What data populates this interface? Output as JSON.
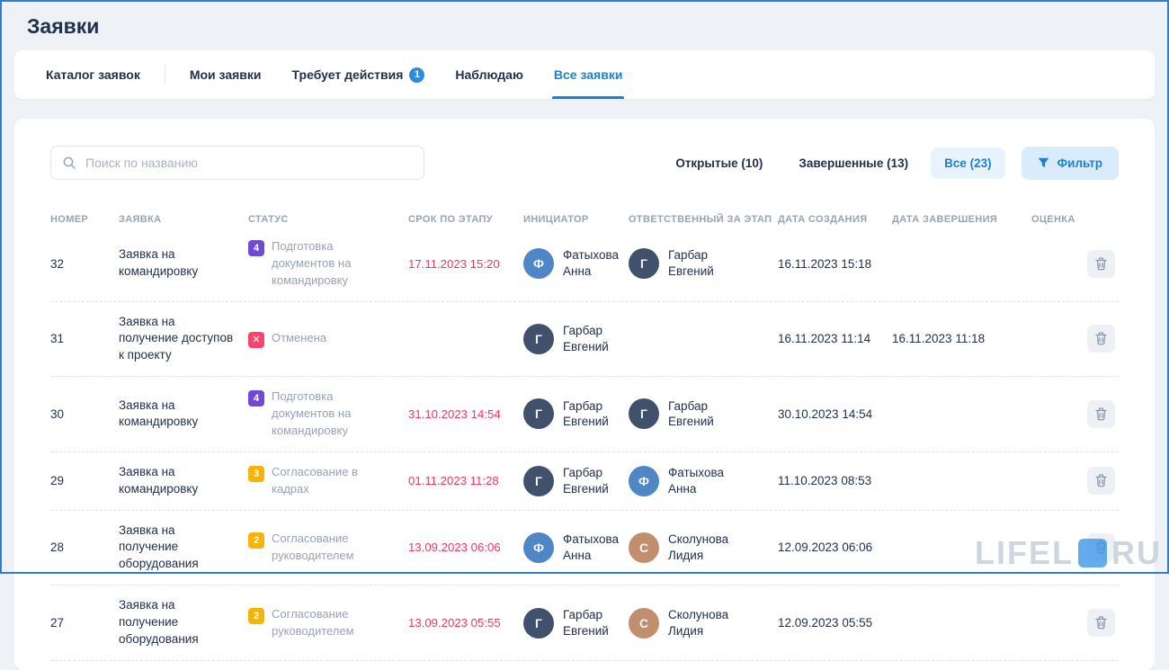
{
  "page": {
    "title": "Заявки",
    "watermark_left": "LIFEL",
    "watermark_right": "RU"
  },
  "tabs": {
    "items": [
      {
        "label": "Каталог заявок",
        "active": false,
        "divider_after": true
      },
      {
        "label": "Мои заявки",
        "active": false
      },
      {
        "label": "Требует действия",
        "badge": "1",
        "active": false
      },
      {
        "label": "Наблюдаю",
        "active": false
      },
      {
        "label": "Все заявки",
        "active": true
      }
    ]
  },
  "toolbar": {
    "search_placeholder": "Поиск по названию",
    "filters": [
      {
        "label": "Открытые (10)",
        "active": false
      },
      {
        "label": "Завершенные (13)",
        "active": false
      },
      {
        "label": "Все (23)",
        "active": true
      }
    ],
    "filter_button": "Фильтр"
  },
  "table": {
    "columns": [
      "НОМЕР",
      "ЗАЯВКА",
      "СТАТУС",
      "СРОК ПО ЭТАПУ",
      "ИНИЦИАТОР",
      "ОТВЕТСТВЕННЫЙ ЗА ЭТАП",
      "ДАТА СОЗДАНИЯ",
      "ДАТА ЗАВЕРШЕНИЯ",
      "ОЦЕНКА"
    ],
    "rows": [
      {
        "number": "32",
        "request": "Заявка на командировку",
        "status": {
          "badge": "4",
          "type": "purple",
          "label": "Подготовка документов на командировку"
        },
        "deadline": "17.11.2023 15:20",
        "initiator": {
          "name": "Фатыхова Анна",
          "initial": "Ф",
          "color": "#4f86c6"
        },
        "responsible": {
          "name": "Гарбар Евгений",
          "initial": "Г",
          "color": "#41506b"
        },
        "created": "16.11.2023 15:18",
        "completed": ""
      },
      {
        "number": "31",
        "request": "Заявка на получение доступов к проекту",
        "status": {
          "badge": "✕",
          "type": "red",
          "label": "Отменена"
        },
        "deadline": "",
        "initiator": {
          "name": "Гарбар Евгений",
          "initial": "Г",
          "color": "#41506b"
        },
        "responsible": null,
        "created": "16.11.2023 11:14",
        "completed": "16.11.2023 11:18"
      },
      {
        "number": "30",
        "request": "Заявка на командировку",
        "status": {
          "badge": "4",
          "type": "purple",
          "label": "Подготовка документов на командировку"
        },
        "deadline": "31.10.2023 14:54",
        "initiator": {
          "name": "Гарбар Евгений",
          "initial": "Г",
          "color": "#41506b"
        },
        "responsible": {
          "name": "Гарбар Евгений",
          "initial": "Г",
          "color": "#41506b"
        },
        "created": "30.10.2023 14:54",
        "completed": ""
      },
      {
        "number": "29",
        "request": "Заявка на командировку",
        "status": {
          "badge": "3",
          "type": "amber",
          "label": "Согласование в кадрах"
        },
        "deadline": "01.11.2023 11:28",
        "initiator": {
          "name": "Гарбар Евгений",
          "initial": "Г",
          "color": "#41506b"
        },
        "responsible": {
          "name": "Фатыхова Анна",
          "initial": "Ф",
          "color": "#4f86c6"
        },
        "created": "11.10.2023 08:53",
        "completed": ""
      },
      {
        "number": "28",
        "request": "Заявка на получение оборудования",
        "status": {
          "badge": "2",
          "type": "amber",
          "label": "Согласование руководителем"
        },
        "deadline": "13.09.2023 06:06",
        "initiator": {
          "name": "Фатыхова Анна",
          "initial": "Ф",
          "color": "#4f86c6"
        },
        "responsible": {
          "name": "Сколунова Лидия",
          "initial": "С",
          "color": "#c28f6e"
        },
        "created": "12.09.2023 06:06",
        "completed": ""
      },
      {
        "number": "27",
        "request": "Заявка на получение оборудования",
        "status": {
          "badge": "2",
          "type": "amber",
          "label": "Согласование руководителем"
        },
        "deadline": "13.09.2023 05:55",
        "initiator": {
          "name": "Гарбар Евгений",
          "initial": "Г",
          "color": "#41506b"
        },
        "responsible": {
          "name": "Сколунова Лидия",
          "initial": "С",
          "color": "#c28f6e"
        },
        "created": "12.09.2023 05:55",
        "completed": ""
      }
    ]
  },
  "colors": {
    "accent_blue": "#1a82d6",
    "active_chip_bg": "#e8f3fd",
    "filter_btn_bg": "#d9ecfb",
    "status_purple": "#6f49d8",
    "status_amber": "#f6b40b",
    "status_red": "#f5476d",
    "deadline_red": "#ef3860",
    "dark_text": "#22304e",
    "muted_text": "#98a2b6"
  }
}
